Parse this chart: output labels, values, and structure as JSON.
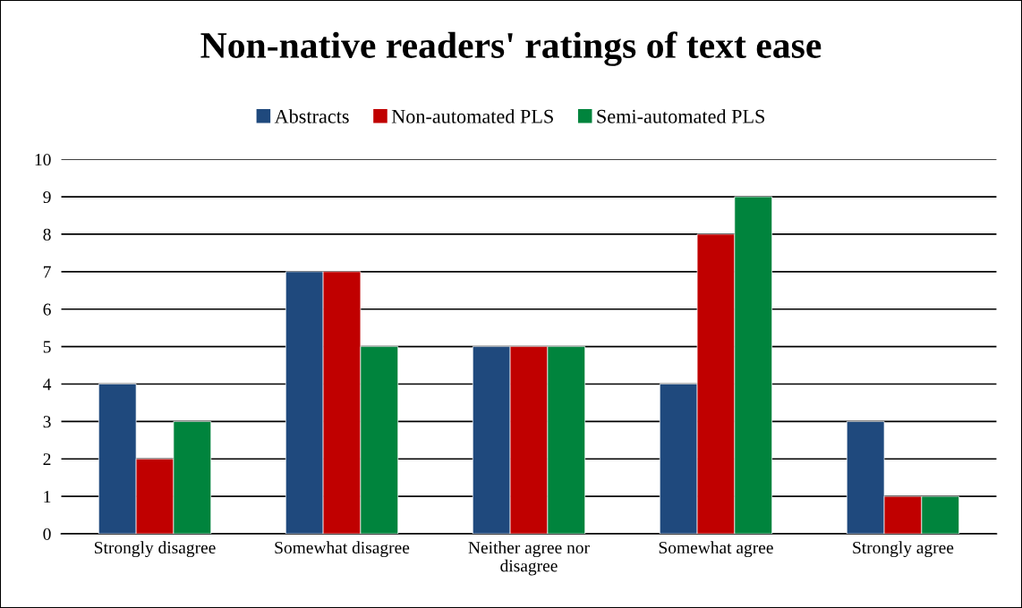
{
  "chart_data": {
    "type": "bar",
    "title": "Non-native readers' ratings of text ease",
    "categories": [
      "Strongly disagree",
      "Somewhat disagree",
      "Neither agree nor disagree",
      "Somewhat agree",
      "Strongly agree"
    ],
    "series": [
      {
        "name": "Abstracts",
        "color": "#1f497d",
        "values": [
          4,
          7,
          5,
          4,
          3
        ]
      },
      {
        "name": "Non-automated PLS",
        "color": "#c00000",
        "values": [
          2,
          7,
          5,
          8,
          1
        ]
      },
      {
        "name": "Semi-automated PLS",
        "color": "#00843d",
        "values": [
          3,
          5,
          5,
          9,
          1
        ]
      }
    ],
    "ylim": [
      0,
      10
    ],
    "yticks": [
      0,
      1,
      2,
      3,
      4,
      5,
      6,
      7,
      8,
      9,
      10
    ],
    "grid": "y",
    "legend": "top"
  }
}
